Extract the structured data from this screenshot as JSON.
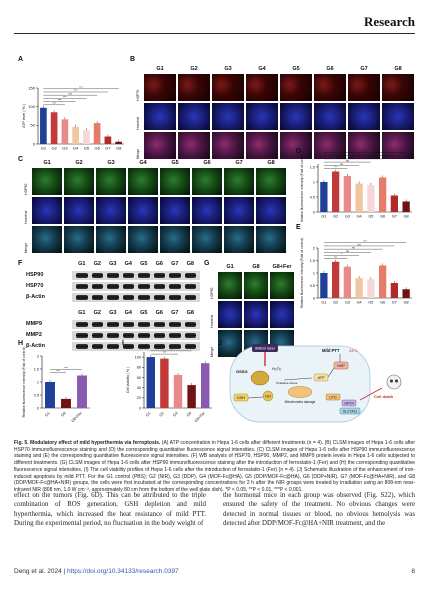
{
  "header": {
    "journal": "Research"
  },
  "panels": {
    "a": "A",
    "b": "B",
    "c": "C",
    "d": "D",
    "e": "E",
    "f": "F",
    "g": "G",
    "h": "H",
    "i": "I",
    "j": "J"
  },
  "groups": [
    "G1",
    "G2",
    "G3",
    "G4",
    "G5",
    "G6",
    "G7",
    "G8"
  ],
  "panel_b_rows": [
    "HSP70",
    "Hoechst",
    "Merge"
  ],
  "panel_c_rows": [
    "HSP90",
    "Hoechst",
    "Merge"
  ],
  "panel_g_cols": [
    "G1",
    "G8",
    "G8+Fer"
  ],
  "panel_g_rows": [
    "HSP90",
    "Hoechst",
    "Merge"
  ],
  "western_blot": {
    "lanes": [
      "G1",
      "G2",
      "G3",
      "G4",
      "G5",
      "G6",
      "G7",
      "G8"
    ],
    "proteins_top": [
      "HSP90",
      "HSP70",
      "β-Actin"
    ],
    "proteins_bottom": [
      "MMP9",
      "MMP2",
      "β-Actin"
    ]
  },
  "chart_data": [
    {
      "panel": "A",
      "type": "bar",
      "categories": [
        "G1",
        "G2",
        "G3",
        "G4",
        "G5",
        "G6",
        "G7",
        "G8"
      ],
      "values": [
        97,
        85,
        66,
        46,
        37,
        56,
        20,
        6
      ],
      "ylabel": "ATP level ( % )",
      "yticks": [
        0,
        50,
        100,
        150
      ],
      "ylim": [
        0,
        150
      ],
      "colors": [
        "#1f3f99",
        "#c23a3a",
        "#e88a8a",
        "#f2c6a0",
        "#f6d6d6",
        "#e77b6a",
        "#b02a2a",
        "#6e1414"
      ],
      "significance": [
        "***",
        "***",
        "***",
        "ns",
        "***",
        "***"
      ]
    },
    {
      "panel": "D",
      "type": "bar",
      "categories": [
        "G1",
        "G2",
        "G3",
        "G4",
        "G5",
        "G6",
        "G7",
        "G8"
      ],
      "values": [
        1.0,
        1.35,
        1.2,
        0.95,
        0.9,
        1.15,
        0.55,
        0.35
      ],
      "ylabel": "Relative fluorescence intensity (Fold of control)",
      "yticks": [
        0.0,
        0.5,
        1.0,
        1.5
      ],
      "ylim": [
        0,
        1.6
      ],
      "colors": [
        "#1f3f99",
        "#c23a3a",
        "#e88a8a",
        "#f2c6a0",
        "#f6d6d6",
        "#e77b6a",
        "#b02a2a",
        "#6e1414"
      ],
      "significance": [
        "**",
        "ns",
        "ns",
        "ns",
        "**",
        "***"
      ]
    },
    {
      "panel": "E",
      "type": "bar",
      "categories": [
        "G1",
        "G2",
        "G3",
        "G4",
        "G5",
        "G6",
        "G7",
        "G8"
      ],
      "values": [
        1.0,
        1.45,
        1.25,
        0.8,
        0.75,
        1.3,
        0.6,
        0.35
      ],
      "ylabel": "Relative fluorescence intensity (Fold of control)",
      "yticks": [
        0.0,
        0.5,
        1.0,
        1.5,
        2.0
      ],
      "ylim": [
        0,
        2.0
      ],
      "colors": [
        "#1f3f99",
        "#c23a3a",
        "#e88a8a",
        "#f2c6a0",
        "#f6d6d6",
        "#e77b6a",
        "#b02a2a",
        "#6e1414"
      ],
      "significance": [
        "***",
        "*",
        "ns",
        "ns",
        "ns",
        "***"
      ]
    },
    {
      "panel": "H",
      "type": "bar",
      "categories": [
        "G1",
        "G8",
        "G8+Fer"
      ],
      "values": [
        1.0,
        0.35,
        1.25
      ],
      "ylabel": "Relative fluorescence intensity (Fold of control)",
      "yticks": [
        0.0,
        0.5,
        1.0,
        1.5,
        2.0
      ],
      "ylim": [
        0,
        2.0
      ],
      "colors": [
        "#1f3f99",
        "#6e1414",
        "#8a5ab0"
      ],
      "significance": [
        "***",
        "***"
      ]
    },
    {
      "panel": "I",
      "type": "bar",
      "categories": [
        "G1",
        "G2",
        "G3",
        "G8",
        "G8+Fer"
      ],
      "values": [
        100,
        97,
        65,
        45,
        88
      ],
      "ylabel": "Cell viability ( % )",
      "yticks": [
        0,
        20,
        40,
        60,
        80,
        100
      ],
      "ylim": [
        0,
        110
      ],
      "colors": [
        "#1f3f99",
        "#c23a3a",
        "#e88a8a",
        "#6e1414",
        "#8a5ab0"
      ],
      "significance": [
        "***",
        "***"
      ]
    }
  ],
  "scheme": {
    "labels": [
      "808nm laser",
      "GSSG",
      "H₂O₂",
      "GSH",
      "OH",
      "HSP",
      "ATP",
      "Mitochondria damage",
      "LPO",
      "GPX4",
      "SLC7A11",
      "Cell death",
      "Mild PTT",
      "43°C",
      "Oxidative stress"
    ]
  },
  "caption": {
    "lead": "Fig. 5.",
    "title": " Modulatory effect of mild hyperthermia via ferroptosis.",
    "body": " (A) ATP concentration in Hepa 1-6 cells after different treatments (n = 4). (B) CLSM images of Hepa 1-6 cells after HSP70 immunofluorescence staining and (D) the corresponding quantitative fluorescence signal intensities. (C) CLSM images of Hepa 1-6 cells after HSP90 immunofluorescence staining and (E) the corresponding quantitative fluorescence signal intensities. (F) WB analysis of HSP70, HSP90, MMP2, and MMP9 protein levels in Hepa 1-6 cells subjected to different treatments. (G) CLSM images of Hepa 1-6 cells after HSP90 immunofluorescence staining after the introduction of ferrostatin-1 (Fer) and (H) the corresponding quantitative fluorescence signal intensities. (I) The cell viability profiles of Hepa 1-6 cells after the introduction of ferrostatin-1 (Fer) (n = 4). (J) Schematic illustration of the enhancement of iron-induced apoptosis by mild PTT. For the G1 control (PBS); G2 (NIR), G3 (DDP), G4 (MOF-Fc@HA), G5 (DDP/MOF-Fc@HA), G6 (DDP+NIR), G7 (MOF-Fc@HA+NIR), and G8 (DDP/MOF-Fc@HA+NIR) groups, the cells were first incubated at the corresponding concentrations for 2 h after the NIR groups were treated by irradiation using an 808-nm near-infrared NIR (808 nm, 1.0 W cm⁻², approximately 80 cm from the bottom of the well plate dish). *P < 0.05, **P < 0.01, ***P < 0.001."
  },
  "body_left": "effect on the tumors (Fig. 6D). This can be attributed to the triple combination of ROS generation, GSH depletion and mild hyperthermia, which increased the heat resistance of mild PTT. During the experimental period, no fluctuation in the body weight of",
  "body_right": "the hormonal mice in each group was observed (Fig. S22), which ensured the safety of the treatment. No obvious changes were detected in normal tissues or blood, no obvious hemolysis was detected after DDP/MOF-Fc@HA+NIR treatment, and the",
  "footer": {
    "authors": "Deng et al. 2024 |",
    "doi": "https://doi.org/10.34133/research.0397",
    "page": "8"
  }
}
